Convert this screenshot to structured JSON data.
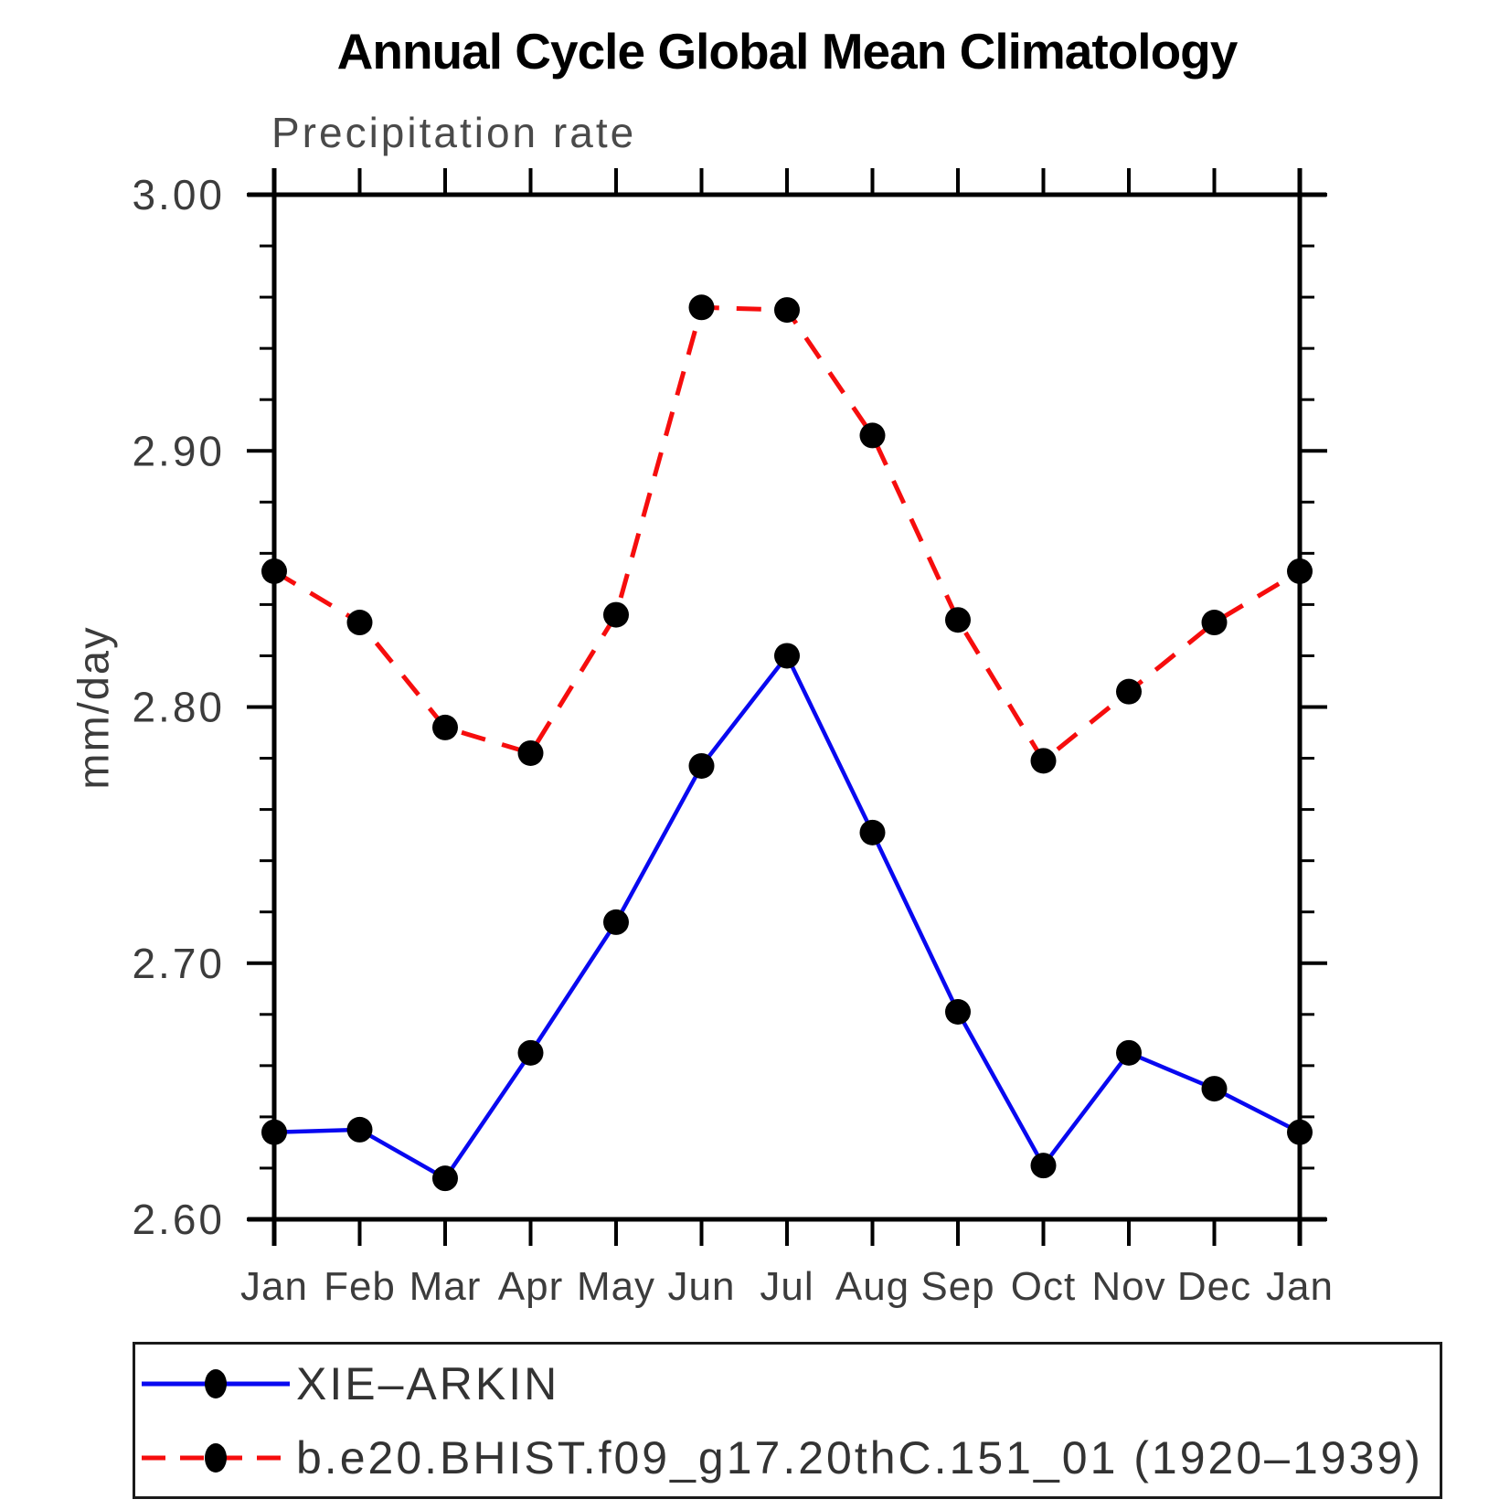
{
  "header": {
    "title": "Annual Cycle Global Mean Climatology",
    "subtitle": "Precipitation rate"
  },
  "chart_data": {
    "type": "line",
    "title": "Annual Cycle Global Mean Climatology",
    "subtitle": "Precipitation rate",
    "ylabel": "mm/day",
    "xlabel": "",
    "categories": [
      "Jan",
      "Feb",
      "Mar",
      "Apr",
      "May",
      "Jun",
      "Jul",
      "Aug",
      "Sep",
      "Oct",
      "Nov",
      "Dec",
      "Jan"
    ],
    "ylim": [
      2.6,
      3.0
    ],
    "yticks_major": [
      2.6,
      2.7,
      2.8,
      2.9,
      3.0
    ],
    "ytick_labels": [
      "2.60",
      "2.70",
      "2.80",
      "2.90",
      "3.00"
    ],
    "y_minor_step": 0.02,
    "grid": false,
    "legend_position": "bottom",
    "series": [
      {
        "name": "XIE–ARKIN",
        "color": "#0808f0",
        "line_style": "solid",
        "marker": "circle",
        "marker_color": "#000000",
        "values": [
          2.634,
          2.635,
          2.616,
          2.665,
          2.716,
          2.777,
          2.82,
          2.751,
          2.681,
          2.621,
          2.665,
          2.651,
          2.634
        ]
      },
      {
        "name": "b.e20.BHIST.f09_g17.20thC.151_01 (1920–1939)",
        "color": "#f60d0d",
        "line_style": "dashed",
        "marker": "circle",
        "marker_color": "#000000",
        "values": [
          2.853,
          2.833,
          2.792,
          2.782,
          2.836,
          2.956,
          2.955,
          2.906,
          2.834,
          2.779,
          2.806,
          2.833,
          2.853
        ]
      }
    ]
  },
  "colors": {
    "axis": "#000000",
    "tick_text": "#3c3c3c",
    "title_text": "#000000",
    "legend_border": "#1a1a1a"
  }
}
